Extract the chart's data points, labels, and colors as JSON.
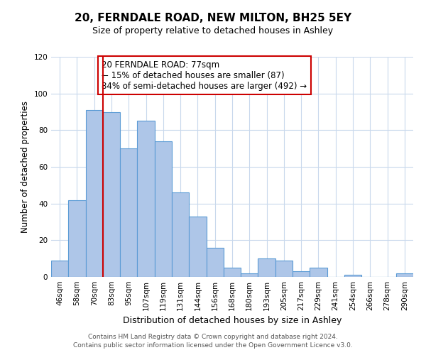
{
  "title": "20, FERNDALE ROAD, NEW MILTON, BH25 5EY",
  "subtitle": "Size of property relative to detached houses in Ashley",
  "xlabel": "Distribution of detached houses by size in Ashley",
  "ylabel": "Number of detached properties",
  "bar_labels": [
    "46sqm",
    "58sqm",
    "70sqm",
    "83sqm",
    "95sqm",
    "107sqm",
    "119sqm",
    "131sqm",
    "144sqm",
    "156sqm",
    "168sqm",
    "180sqm",
    "193sqm",
    "205sqm",
    "217sqm",
    "229sqm",
    "241sqm",
    "254sqm",
    "266sqm",
    "278sqm",
    "290sqm"
  ],
  "bar_values": [
    9,
    42,
    91,
    90,
    70,
    85,
    74,
    46,
    33,
    16,
    5,
    2,
    10,
    9,
    3,
    5,
    0,
    1,
    0,
    0,
    2
  ],
  "bar_color": "#aec6e8",
  "bar_edge_color": "#5b9bd5",
  "ylim": [
    0,
    120
  ],
  "yticks": [
    0,
    20,
    40,
    60,
    80,
    100,
    120
  ],
  "vline_x_index": 2,
  "vline_color": "#cc0000",
  "annotation_box_text": "20 FERNDALE ROAD: 77sqm\n← 15% of detached houses are smaller (87)\n84% of semi-detached houses are larger (492) →",
  "annotation_box_color": "#cc0000",
  "footer_line1": "Contains HM Land Registry data © Crown copyright and database right 2024.",
  "footer_line2": "Contains public sector information licensed under the Open Government Licence v3.0.",
  "background_color": "#ffffff",
  "grid_color": "#c8d8ec",
  "title_fontsize": 11,
  "subtitle_fontsize": 9,
  "ylabel_fontsize": 8.5,
  "xlabel_fontsize": 9,
  "tick_fontsize": 7.5,
  "annotation_fontsize": 8.5,
  "footer_fontsize": 6.5
}
